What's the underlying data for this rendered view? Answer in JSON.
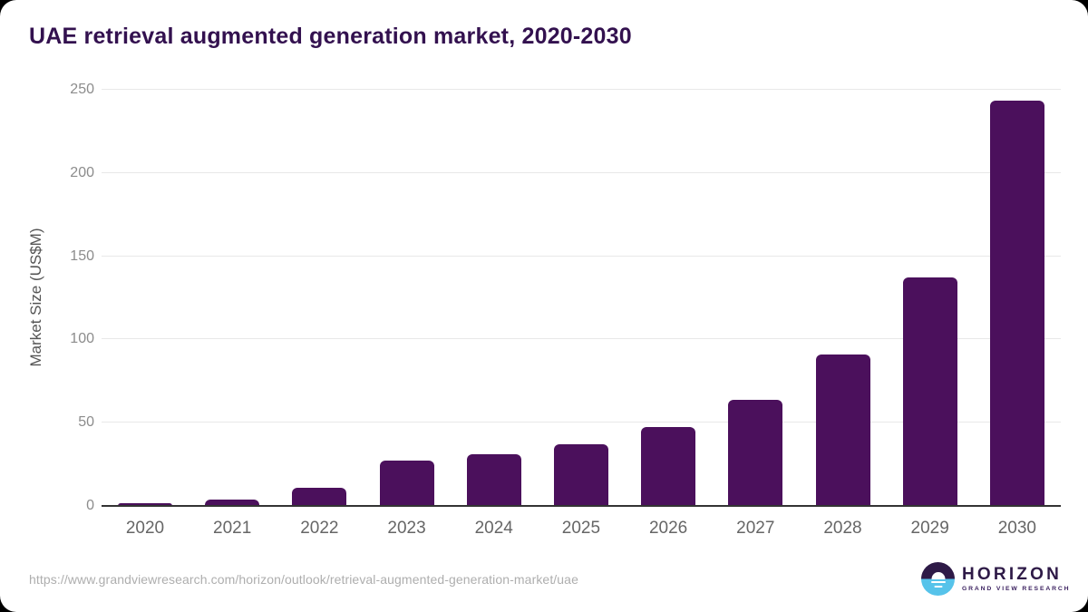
{
  "title": "UAE retrieval augmented generation market, 2020-2030",
  "chart_data": {
    "type": "bar",
    "categories": [
      "2020",
      "2021",
      "2022",
      "2023",
      "2024",
      "2025",
      "2026",
      "2027",
      "2028",
      "2029",
      "2030"
    ],
    "values": [
      1.5,
      4,
      11,
      27.5,
      31,
      37,
      47.5,
      63.5,
      91,
      137.5,
      243.5
    ],
    "title": "UAE retrieval augmented generation market, 2020-2030",
    "xlabel": "",
    "ylabel": "Market Size (US$M)",
    "ylim": [
      0,
      250
    ],
    "yticks": [
      0,
      50,
      100,
      150,
      200,
      250
    ],
    "grid": true,
    "legend": "none",
    "bar_color": "#4b105c"
  },
  "colors": {
    "bar": "#4b105c",
    "title_text": "#33114f",
    "y_tick_text": "#8c8c8c",
    "x_tick_text": "#666666",
    "gridline": "#e8e8e8",
    "axis_line": "#333333",
    "url_text": "#aeaeae",
    "logo_purple": "#2e1a47",
    "logo_blue": "#56c3ea"
  },
  "footer": {
    "source_url": "https://www.grandviewresearch.com/horizon/outlook/retrieval-augmented-generation-market/uae",
    "logo": {
      "brand": "HORIZON",
      "subbrand": "GRAND VIEW RESEARCH"
    }
  }
}
